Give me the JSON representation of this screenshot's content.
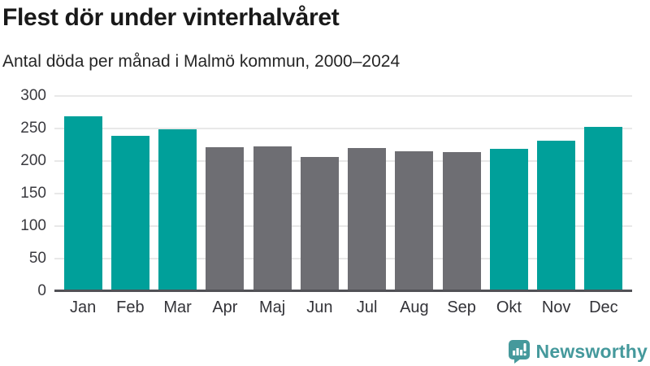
{
  "header": {
    "title": "Flest dör under vinterhalvåret",
    "subtitle": "Antal döda per månad i Malmö kommun, 2000–2024"
  },
  "chart_data": {
    "type": "bar",
    "title": "Flest dör under vinterhalvåret",
    "subtitle": "Antal döda per månad i Malmö kommun, 2000–2024",
    "categories": [
      "Jan",
      "Feb",
      "Mar",
      "Apr",
      "Maj",
      "Jun",
      "Jul",
      "Aug",
      "Sep",
      "Okt",
      "Nov",
      "Dec"
    ],
    "values": [
      269,
      239,
      249,
      221,
      223,
      206,
      220,
      215,
      214,
      219,
      231,
      252
    ],
    "groups": [
      "vinter",
      "vinter",
      "vinter",
      "sommar",
      "sommar",
      "sommar",
      "sommar",
      "sommar",
      "sommar",
      "vinter",
      "vinter",
      "vinter"
    ],
    "group_colors": {
      "vinter": "#00a09a",
      "sommar": "#6e6e73"
    },
    "bar_colors": [
      "#00a09a",
      "#00a09a",
      "#00a09a",
      "#6e6e73",
      "#6e6e73",
      "#6e6e73",
      "#6e6e73",
      "#6e6e73",
      "#6e6e73",
      "#00a09a",
      "#00a09a",
      "#00a09a"
    ],
    "xlabel": "",
    "ylabel": "",
    "ylim": [
      0,
      300
    ],
    "yticks": [
      0,
      50,
      100,
      150,
      200,
      250,
      300
    ],
    "grid": true,
    "legend_position": "none",
    "gridline_color": "#e8e8e8",
    "axis_line_color": "#515156"
  },
  "footer": {
    "brand": "Newsworthy",
    "brand_color": "#45999c",
    "logo_icon": "bar-chart-speech-bubble-icon"
  }
}
